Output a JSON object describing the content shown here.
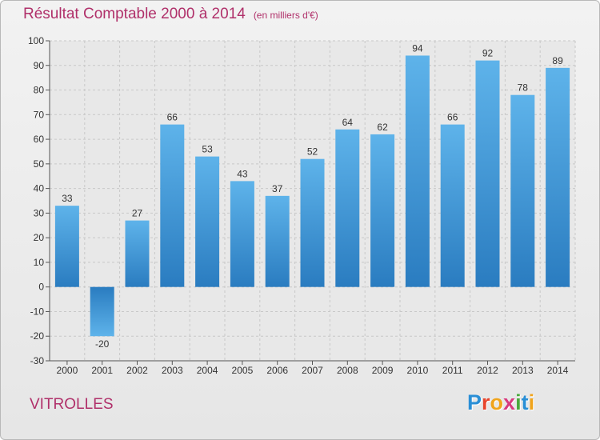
{
  "header": {
    "title": "Résultat Comptable 2000 à 2014",
    "subtitle": "(en milliers d'€)"
  },
  "footer": {
    "location": "VITROLLES",
    "logo_letters": [
      "P",
      "r",
      "o",
      "x",
      "i",
      "t",
      "i"
    ],
    "logo_colors": [
      "#2a8fd6",
      "#e8452c",
      "#f0a41c",
      "#d73a7f",
      "#4aa93c",
      "#2a8fd6",
      "#f0a41c"
    ]
  },
  "colors": {
    "bar_light": "#5aafe8",
    "bar_dark": "#2a7cc0",
    "grid": "#c8c8c8",
    "plot_bg": "#e8e8e8"
  },
  "chart_data": {
    "type": "bar",
    "title": "Résultat Comptable 2000 à 2014",
    "subtitle": "(en milliers d'€)",
    "categories": [
      "2000",
      "2001",
      "2002",
      "2003",
      "2004",
      "2005",
      "2006",
      "2007",
      "2008",
      "2009",
      "2010",
      "2011",
      "2012",
      "2013",
      "2014"
    ],
    "values": [
      33,
      -20,
      27,
      66,
      53,
      43,
      37,
      52,
      64,
      62,
      94,
      66,
      92,
      78,
      89
    ],
    "ylim": [
      -30,
      100
    ],
    "yticks": [
      -30,
      -20,
      -10,
      0,
      10,
      20,
      30,
      40,
      50,
      60,
      70,
      80,
      90,
      100
    ],
    "grid": true,
    "legend": "none",
    "xlabel": "",
    "ylabel": ""
  }
}
